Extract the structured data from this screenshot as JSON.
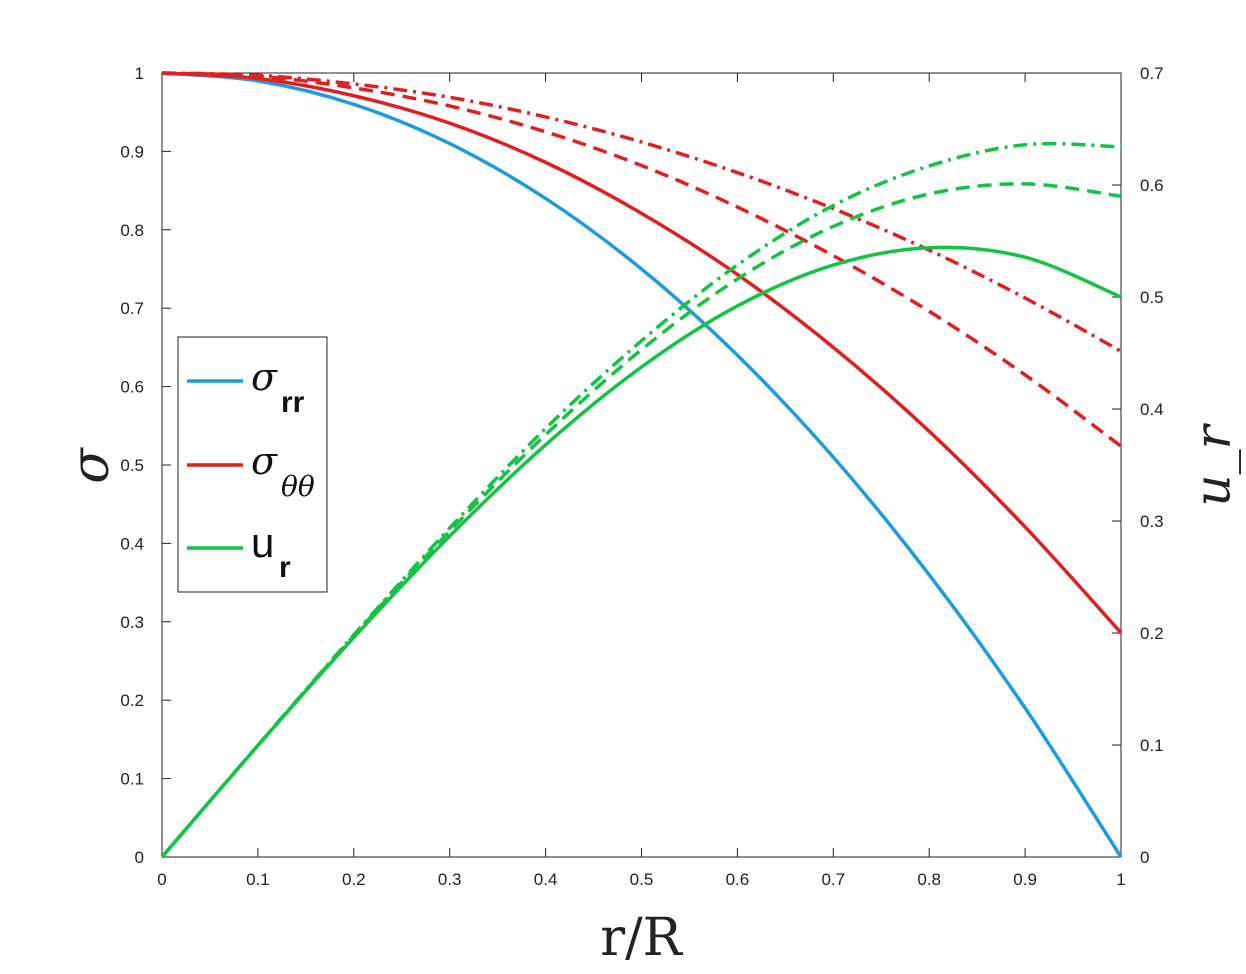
{
  "colors": {
    "sigma_rr": "#1e9be0",
    "sigma_tt": "#e02020",
    "u_r": "#12c442",
    "axis": "#222222"
  },
  "chart_data": {
    "type": "line",
    "xlabel": "r/R",
    "ylabel_left": "σ",
    "ylabel_right": "u_r",
    "xlim": [
      0,
      1
    ],
    "ylim_left": [
      0,
      1
    ],
    "ylim_right": [
      0,
      0.7
    ],
    "x_ticks": [
      "0",
      "0.1",
      "0.2",
      "0.3",
      "0.4",
      "0.5",
      "0.6",
      "0.7",
      "0.8",
      "0.9",
      "1"
    ],
    "y_left_ticks": [
      "0",
      "0.1",
      "0.2",
      "0.3",
      "0.4",
      "0.5",
      "0.6",
      "0.7",
      "0.8",
      "0.9",
      "1"
    ],
    "y_right_ticks": [
      "0",
      "0.1",
      "0.2",
      "0.3",
      "0.4",
      "0.5",
      "0.6",
      "0.7"
    ],
    "grid": false,
    "legend_position": "left",
    "legend": [
      {
        "symbol": "σ",
        "subscript": "rr",
        "color_key": "sigma_rr"
      },
      {
        "symbol": "σ",
        "subscript": "θθ",
        "color_key": "sigma_tt"
      },
      {
        "symbol": "u",
        "subscript": "r",
        "color_key": "u_r"
      }
    ],
    "x": [
      0,
      0.1,
      0.2,
      0.3,
      0.4,
      0.5,
      0.6,
      0.7,
      0.8,
      0.9,
      1.0
    ],
    "series": [
      {
        "label": "σ_rr",
        "color_key": "sigma_rr",
        "style": "solid",
        "axis": "left",
        "values": [
          1.0,
          0.99,
          0.96,
          0.91,
          0.84,
          0.75,
          0.64,
          0.51,
          0.36,
          0.19,
          0.0
        ]
      },
      {
        "label": "σ_θθ",
        "color_key": "sigma_tt",
        "style": "solid",
        "axis": "left",
        "values": [
          1.0,
          0.993,
          0.971,
          0.936,
          0.886,
          0.821,
          0.743,
          0.65,
          0.543,
          0.421,
          0.286
        ]
      },
      {
        "label": "σ_θθ",
        "color_key": "sigma_tt",
        "style": "dashed",
        "axis": "left",
        "values": [
          1.0,
          0.996,
          0.981,
          0.958,
          0.925,
          0.882,
          0.829,
          0.767,
          0.696,
          0.615,
          0.524
        ]
      },
      {
        "label": "σ_θθ",
        "color_key": "sigma_tt",
        "style": "dashdot",
        "axis": "left",
        "values": [
          1.0,
          0.997,
          0.986,
          0.969,
          0.944,
          0.912,
          0.873,
          0.827,
          0.774,
          0.713,
          0.645
        ]
      },
      {
        "label": "u_r",
        "color_key": "u_r",
        "style": "solid",
        "axis": "right",
        "values": [
          0.0,
          0.0995,
          0.196,
          0.2865,
          0.368,
          0.4375,
          0.492,
          0.5285,
          0.544,
          0.5355,
          0.5
        ]
      },
      {
        "label": "u_r",
        "color_key": "u_r",
        "style": "dashed",
        "axis": "right",
        "values": [
          0.0,
          0.0997,
          0.1975,
          0.291,
          0.377,
          0.453,
          0.516,
          0.563,
          0.592,
          0.601,
          0.59
        ]
      },
      {
        "label": "u_r",
        "color_key": "u_r",
        "style": "dashdot",
        "axis": "right",
        "values": [
          0.0,
          0.0998,
          0.1983,
          0.2937,
          0.3826,
          0.4609,
          0.5286,
          0.5817,
          0.617,
          0.636,
          0.634
        ]
      }
    ]
  }
}
